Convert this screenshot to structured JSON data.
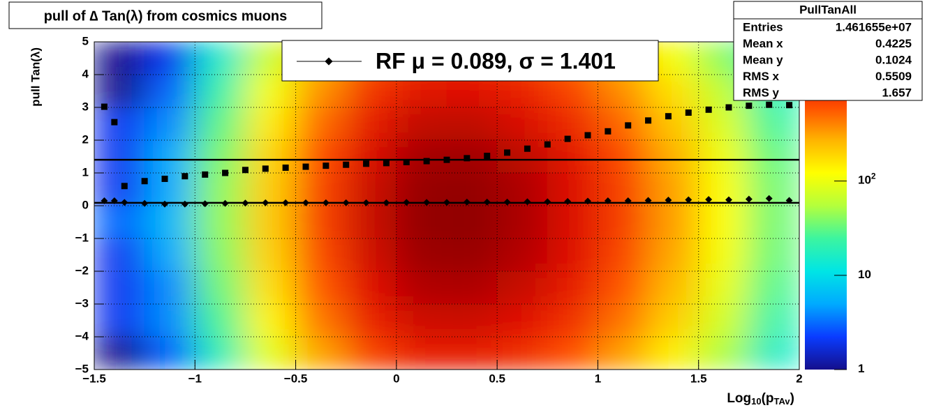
{
  "chart_data": {
    "type": "heatmap",
    "title": "pull of ∆ Tan(λ) from cosmics muons",
    "y_label": "pull Tan(λ)",
    "x_label": [
      "Log",
      "10",
      "(p",
      "TAv",
      ")"
    ],
    "xlim": [
      -1.5,
      2
    ],
    "ylim": [
      -5,
      5
    ],
    "zlim": [
      1,
      3000
    ],
    "log_z": true,
    "grid": true,
    "xticks": [
      {
        "value": -1.5,
        "label": "−1.5"
      },
      {
        "value": -1,
        "label": "−1"
      },
      {
        "value": -0.5,
        "label": "−0.5"
      },
      0,
      0.5,
      1,
      1.5,
      2
    ],
    "yticks": [
      {
        "value": -5,
        "label": "−5"
      },
      {
        "value": -4,
        "label": "−4"
      },
      {
        "value": -3,
        "label": "−3"
      },
      {
        "value": -2,
        "label": "−2"
      },
      {
        "value": -1,
        "label": "−1"
      },
      0,
      1,
      2,
      3,
      4,
      5
    ],
    "zticks": [
      1,
      10,
      {
        "value": 100,
        "label": "10",
        "exponent": "2"
      }
    ],
    "palette": [
      "#140f8c",
      "#0a3cff",
      "#00aaff",
      "#00e5e5",
      "#3cf5a0",
      "#b4ff3c",
      "#ffff00",
      "#ffb400",
      "#ff5000",
      "#dc0a00",
      "#780000"
    ],
    "xbins": [
      -1.5,
      -1.25,
      -1,
      -0.75,
      -0.5,
      -0.25,
      0,
      0.25,
      0.5,
      0.75,
      1,
      1.25,
      1.5,
      1.75,
      2
    ],
    "ybins": [
      5,
      4,
      3,
      2,
      1,
      0,
      -1,
      -2,
      -3,
      -4,
      -5
    ],
    "z": [
      [
        1,
        2,
        15,
        74,
        245,
        550,
        832,
        851,
        692,
        468,
        251,
        112,
        42,
        12
      ],
      [
        1,
        3,
        22,
        110,
        363,
        813,
        1230,
        1259,
        1023,
        692,
        372,
        166,
        62,
        18
      ],
      [
        2,
        4,
        30,
        148,
        490,
        1096,
        1660,
        1698,
        1380,
        933,
        501,
        224,
        83,
        25
      ],
      [
        2,
        5,
        37,
        186,
        617,
        1380,
        2089,
        2138,
        1738,
        1175,
        631,
        282,
        105,
        31
      ],
      [
        2,
        5,
        42,
        209,
        692,
        1549,
        2344,
        2399,
        1950,
        1318,
        708,
        316,
        117,
        35
      ],
      [
        3,
        6,
        43,
        214,
        708,
        1585,
        2399,
        2455,
        1995,
        1349,
        724,
        324,
        120,
        35
      ],
      [
        2,
        5,
        40,
        200,
        661,
        1479,
        2239,
        2291,
        1862,
        1259,
        676,
        302,
        112,
        33
      ],
      [
        2,
        4,
        34,
        170,
        562,
        1259,
        1905,
        1950,
        1585,
        1072,
        575,
        257,
        95,
        28
      ],
      [
        2,
        4,
        27,
        135,
        447,
        1000,
        1514,
        1549,
        1259,
        851,
        457,
        204,
        76,
        22
      ],
      [
        1,
        3,
        19,
        95,
        316,
        708,
        1072,
        1096,
        891,
        603,
        324,
        145,
        54,
        16
      ]
    ],
    "profile_x": [
      -1.45,
      -1.4,
      -1.35,
      -1.25,
      -1.15,
      -1.05,
      -0.95,
      -0.85,
      -0.75,
      -0.65,
      -0.55,
      -0.45,
      -0.35,
      -0.25,
      -0.15,
      -0.05,
      0.05,
      0.15,
      0.25,
      0.35,
      0.45,
      0.55,
      0.65,
      0.75,
      0.85,
      0.95,
      1.05,
      1.15,
      1.25,
      1.35,
      1.45,
      1.55,
      1.65,
      1.75,
      1.85,
      1.95
    ],
    "profiles": [
      {
        "marker": "square",
        "color": "#000000",
        "values": [
          3.02,
          2.55,
          0.6,
          0.75,
          0.82,
          0.9,
          0.95,
          1.0,
          1.09,
          1.13,
          1.16,
          1.19,
          1.22,
          1.25,
          1.28,
          1.3,
          1.33,
          1.36,
          1.4,
          1.45,
          1.52,
          1.62,
          1.74,
          1.87,
          2.04,
          2.15,
          2.27,
          2.45,
          2.6,
          2.73,
          2.84,
          2.93,
          3.0,
          3.05,
          3.08,
          3.07
        ]
      },
      {
        "marker": "diamond",
        "color": "#000000",
        "values": [
          0.15,
          0.15,
          0.1,
          0.07,
          0.05,
          0.05,
          0.06,
          0.07,
          0.08,
          0.09,
          0.09,
          0.09,
          0.09,
          0.09,
          0.09,
          0.09,
          0.1,
          0.1,
          0.1,
          0.11,
          0.11,
          0.11,
          0.12,
          0.12,
          0.13,
          0.14,
          0.15,
          0.15,
          0.16,
          0.17,
          0.18,
          0.19,
          0.18,
          0.2,
          0.22,
          0.16
        ]
      }
    ],
    "hlines": [
      0.089,
      1.401
    ],
    "legend": "RF μ =  0.089, σ =   1.401",
    "stats": {
      "title": "PullTanAll",
      "rows": [
        {
          "name": "Entries",
          "value": "1.461655e+07"
        },
        {
          "name": "Mean x",
          "value": "0.4225"
        },
        {
          "name": "Mean y",
          "value": "0.1024"
        },
        {
          "name": "RMS x",
          "value": "0.5509"
        },
        {
          "name": "RMS y",
          "value": "1.657"
        }
      ]
    }
  }
}
